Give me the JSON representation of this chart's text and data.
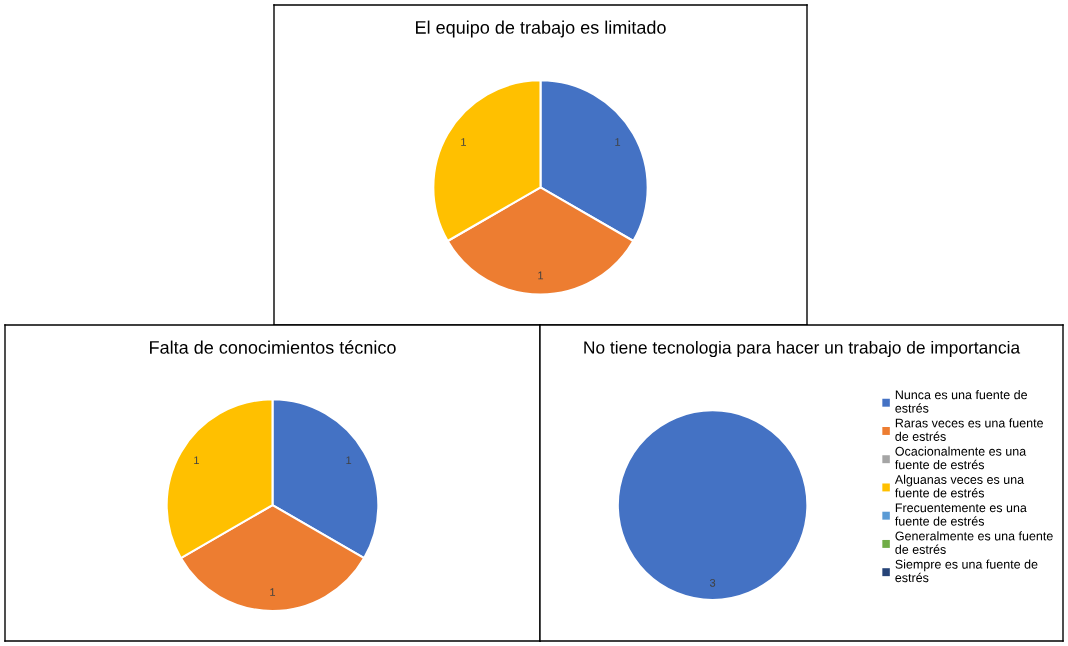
{
  "chart_data": [
    {
      "type": "pie",
      "title": "El equipo de trabajo es limitado",
      "categories": [
        null,
        null,
        null,
        null,
        null,
        null,
        null
      ],
      "values": [
        1,
        1,
        0,
        1,
        0,
        0,
        0
      ],
      "value_labels": [
        "1",
        "1",
        null,
        "1",
        null,
        null,
        null
      ],
      "colors": [
        "#4472c4",
        "#ed7d31",
        "#a5a5a5",
        "#ffc000",
        "#5b9bd5",
        "#70ad47",
        "#264478"
      ]
    },
    {
      "type": "pie",
      "title": "Falta de conocimientos técnico",
      "categories": [
        null,
        null,
        null,
        null,
        null,
        null,
        null
      ],
      "values": [
        1,
        1,
        0,
        1,
        0,
        0,
        0
      ],
      "value_labels": [
        "1",
        "1",
        null,
        "1",
        null,
        null,
        null
      ],
      "colors": [
        "#4472c4",
        "#ed7d31",
        "#a5a5a5",
        "#ffc000",
        "#5b9bd5",
        "#70ad47",
        "#264478"
      ]
    },
    {
      "type": "pie",
      "title": "No tiene tecnologia para hacer un trabajo de importancia",
      "categories": [
        "Nunca es una fuente de estrés",
        "Raras veces es una fuente de estrés",
        "Ocacionalmente es una fuente de estrés",
        "Alguanas veces es una fuente de estrés",
        "Frecuentemente es una fuente de estrés",
        "Generalmente es una fuente de estrés",
        "Siempre es una fuente de estrés"
      ],
      "values": [
        3,
        0,
        0,
        0,
        0,
        0,
        0
      ],
      "value_labels": [
        "3",
        null,
        null,
        null,
        null,
        null,
        null
      ],
      "colors": [
        "#4472c4",
        "#ed7d31",
        "#a5a5a5",
        "#ffc000",
        "#5b9bd5",
        "#70ad47",
        "#264478"
      ],
      "legend": "right"
    }
  ]
}
